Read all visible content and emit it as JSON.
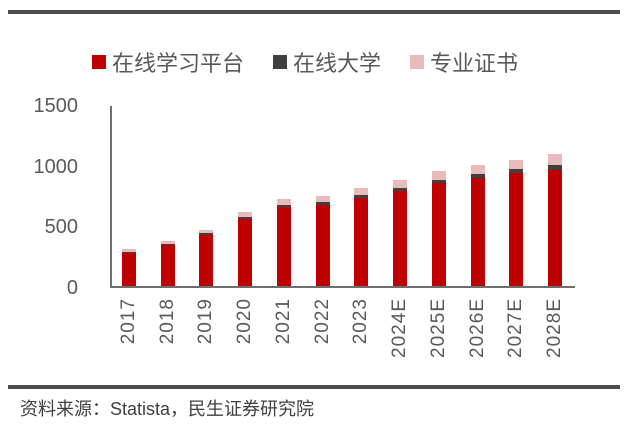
{
  "page": {
    "source_note": "资料来源：Statista，民生证券研究院"
  },
  "chart_data": {
    "type": "bar",
    "stacked": true,
    "title": "",
    "xlabel": "",
    "ylabel": "",
    "categories": [
      "2017",
      "2018",
      "2019",
      "2020",
      "2021",
      "2022",
      "2023",
      "2024E",
      "2025E",
      "2026E",
      "2027E",
      "2028E"
    ],
    "series": [
      {
        "name": "在线学习平台",
        "color": "#c00000",
        "values": [
          270,
          340,
          420,
          550,
          650,
          670,
          725,
          780,
          845,
          890,
          935,
          960
        ]
      },
      {
        "name": "在线大学",
        "color": "#404040",
        "values": [
          10,
          10,
          15,
          20,
          20,
          20,
          25,
          25,
          30,
          30,
          30,
          40
        ]
      },
      {
        "name": "专业证书",
        "color": "#e8baba",
        "values": [
          25,
          25,
          30,
          40,
          50,
          50,
          55,
          70,
          70,
          75,
          75,
          85
        ]
      }
    ],
    "totals": [
      305,
      375,
      465,
      610,
      720,
      740,
      805,
      875,
      945,
      995,
      1040,
      1085
    ],
    "ylim": [
      0,
      1500
    ],
    "yticks": [
      0,
      500,
      1000,
      1500
    ],
    "legend_position": "top",
    "grid": false,
    "axis_color": "#6e6e6e",
    "text_color": "#595959"
  }
}
